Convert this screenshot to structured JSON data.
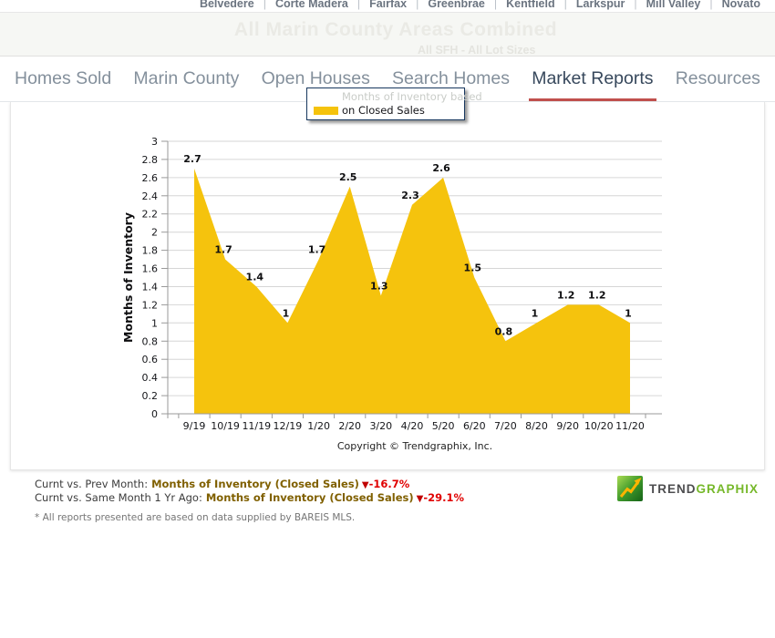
{
  "city_nav": {
    "separator": "|",
    "items": [
      "Belvedere",
      "Corte Madera",
      "Fairfax",
      "Greenbrae",
      "Kentfield",
      "Larkspur",
      "Mill Valley",
      "Novato"
    ]
  },
  "hero": {
    "title": "All Marin County Areas Combined",
    "subtitle": "All SFH - All Lot Sizes"
  },
  "tabs": {
    "items": [
      {
        "label": "Homes Sold",
        "active": false
      },
      {
        "label": "Marin County",
        "active": false
      },
      {
        "label": "Open Houses",
        "active": false
      },
      {
        "label": "Search Homes",
        "active": false
      },
      {
        "label": "Market Reports",
        "active": true
      },
      {
        "label": "Resources",
        "active": false
      }
    ]
  },
  "legend": {
    "line1": "Months of Inventory based",
    "line2": "on Closed Sales",
    "swatch_color": "#F5C30D"
  },
  "chart_data": {
    "type": "area",
    "title": "",
    "series_name": "Months of Inventory based on Closed Sales",
    "xlabel": "",
    "ylabel": "Months of Inventory",
    "categories": [
      "9/19",
      "10/19",
      "11/19",
      "12/19",
      "1/20",
      "2/20",
      "3/20",
      "4/20",
      "5/20",
      "6/20",
      "7/20",
      "8/20",
      "9/20",
      "10/20",
      "11/20"
    ],
    "values": [
      2.7,
      1.7,
      1.4,
      1,
      1.7,
      2.5,
      1.3,
      2.3,
      2.6,
      1.5,
      0.8,
      1,
      1.2,
      1.2,
      1
    ],
    "value_labels": [
      "2.7",
      "1.7",
      "1.4",
      "1",
      "1.7",
      "2.5",
      "1.3",
      "2.3",
      "2.6",
      "1.5",
      "0.8",
      "1",
      "1.2",
      "1.2",
      "1"
    ],
    "ylim": [
      0,
      3
    ],
    "ytick_step": 0.2,
    "grid": "horizontal",
    "legend_position": "top",
    "fill_color": "#F5C30D",
    "footnote": "Copyright © Trendgraphix, Inc."
  },
  "stats": {
    "rows": [
      {
        "label": "Curnt vs. Prev Month:",
        "metric": "Months of Inventory (Closed Sales)",
        "arrow": "▼",
        "change": "-16.7%"
      },
      {
        "label": "Curnt vs. Same Month 1 Yr Ago:",
        "metric": "Months of Inventory (Closed Sales)",
        "arrow": "▼",
        "change": "-29.1%"
      }
    ]
  },
  "logo": {
    "trend": "TREND",
    "graphix": "GRAPHIX"
  },
  "footer": {
    "note": "* All reports presented are based on data supplied by BAREIS MLS."
  },
  "colors": {
    "chart_fill": "#F5C30D",
    "active_tab_underline": "#c0504d",
    "stat_metric": "#806000",
    "stat_change": "#e00000",
    "logo_green": "#76b82a"
  }
}
